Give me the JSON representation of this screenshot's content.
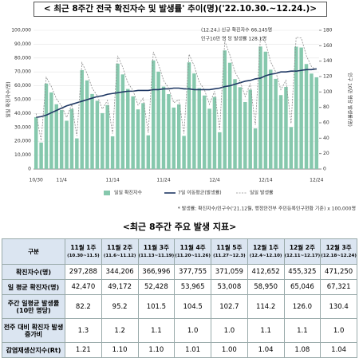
{
  "chart_data": {
    "type": "bar-line",
    "title": "< 최근 8주간 전국 확진자수 및 발생률' 추이(명)('22.10.30.~12.24.)>",
    "y_label": "일일 확진자수(명)",
    "y2_label": "인구 10만 명당 발생률(명)",
    "annotations": [
      "(12.24.) 신규 확진자수 66,145명",
      "인구10만 명 당 발생률 128.1명"
    ],
    "footnote": "* 발생률: 확진자수/인구수('21.12월, 행정안전부 주민등록인구현황 기준) x 100,000명",
    "categories": [
      "10/30",
      null,
      null,
      null,
      null,
      "11/4",
      null,
      null,
      null,
      null,
      null,
      null,
      null,
      null,
      null,
      "11/14",
      null,
      null,
      null,
      null,
      null,
      null,
      null,
      null,
      null,
      "11/24",
      null,
      null,
      null,
      null,
      null,
      null,
      null,
      null,
      null,
      "12/4",
      null,
      null,
      null,
      null,
      null,
      null,
      null,
      null,
      null,
      "12/14",
      null,
      null,
      null,
      null,
      null,
      null,
      null,
      null,
      null,
      "12/24"
    ],
    "ylim": [
      0,
      100000
    ],
    "yticks": [
      0,
      {
        "value": 10000,
        "label": "10,000"
      },
      {
        "value": 20000,
        "label": "20,000"
      },
      {
        "value": 30000,
        "label": "30,000"
      },
      {
        "value": 40000,
        "label": "40,000"
      },
      {
        "value": 50000,
        "label": "50,000"
      },
      {
        "value": 60000,
        "label": "60,000"
      },
      {
        "value": 70000,
        "label": "70,000"
      },
      {
        "value": 80000,
        "label": "80,000"
      },
      {
        "value": 90000,
        "label": "90,000"
      },
      {
        "value": 100000,
        "label": "100,000"
      }
    ],
    "y2lim": [
      0,
      180
    ],
    "y2ticks": [
      0,
      20,
      40,
      60,
      80,
      100,
      120,
      140,
      160,
      180
    ],
    "series": [
      {
        "name": "일일 확진자수",
        "color": "#86c8ad",
        "kind": "bar",
        "values": [
          37400,
          19100,
          61600,
          55200,
          46700,
          42500,
          34800,
          43300,
          22100,
          71300,
          63900,
          54100,
          49200,
          40300,
          46100,
          23600,
          76000,
          68200,
          57700,
          52400,
          43000,
          47500,
          24300,
          78300,
          70200,
          59400,
          54000,
          44300,
          46600,
          23900,
          76900,
          68900,
          58300,
          53000,
          43500,
          51900,
          26500,
          85500,
          76600,
          64800,
          59000,
          48300,
          57200,
          29300,
          88300,
          84600,
          71600,
          65000,
          53300,
          59200,
          30300,
          88200,
          87600,
          75700,
          68800,
          66145
        ]
      },
      {
        "name": "7일 이동평균(발생률)",
        "color": "#1f3864",
        "kind": "line",
        "axis": "y2",
        "values": [
          67,
          68,
          70,
          73,
          76,
          79,
          82,
          84,
          86,
          88,
          90,
          92,
          94,
          95,
          97,
          98,
          99,
          100,
          101,
          101,
          102,
          102,
          102,
          103,
          103,
          104,
          104,
          105,
          105,
          104,
          104,
          103,
          103,
          103,
          103,
          104,
          105,
          107,
          108,
          110,
          112,
          114,
          115,
          117,
          118,
          121,
          123,
          124,
          126,
          126,
          127,
          127,
          128,
          129,
          129,
          130
        ]
      },
      {
        "name": "일일 발생률",
        "color": "#8c8c8c",
        "kind": "dashed",
        "axis": "y2",
        "values": [
          72,
          37,
          119,
          107,
          91,
          82,
          67,
          84,
          43,
          138,
          124,
          105,
          95,
          78,
          89,
          46,
          147,
          132,
          112,
          102,
          83,
          92,
          47,
          152,
          136,
          115,
          105,
          86,
          90,
          46,
          149,
          134,
          113,
          103,
          84,
          101,
          51,
          166,
          148,
          126,
          114,
          94,
          111,
          57,
          171,
          164,
          139,
          126,
          103,
          115,
          59,
          171,
          170,
          147,
          133,
          128.1
        ]
      }
    ]
  },
  "table": {
    "title": "<최근 8주간 주요 발생 지표>",
    "corner": "구분",
    "columns": [
      [
        "11월 1주",
        "(10.30~11.5)"
      ],
      [
        "11월 2주",
        "(11.6~11.12)"
      ],
      [
        "11월 3주",
        "(11.13~11.19)"
      ],
      [
        "11월 4주",
        "(11.20~11.26)"
      ],
      [
        "11월 5주",
        "(11.27~12.3)"
      ],
      [
        "12월 1주",
        "(12.4~12.10)"
      ],
      [
        "12월 2주",
        "(12.11~12.17)"
      ],
      [
        "12월 3주",
        "(12.18~12.24)"
      ]
    ],
    "rows": [
      [
        "확진자수(명)",
        "297,288",
        "344,206",
        "366,996",
        "377,755",
        "371,059",
        "412,652",
        "455,325",
        "471,250"
      ],
      [
        "일 평균 확진자(명)",
        "42,470",
        "49,172",
        "52,428",
        "53,965",
        "53,008",
        "58,950",
        "65,046",
        "67,321"
      ],
      [
        "주간 일평균 발생률(10만 명당)",
        "82.2",
        "95.2",
        "101.5",
        "104.5",
        "102.7",
        "114.2",
        "126.0",
        "130.4"
      ],
      [
        "전주 대비 확진자 발생 증가비",
        "1.3",
        "1.2",
        "1.1",
        "1.0",
        "1.0",
        "1.1",
        "1.1",
        "1.0"
      ],
      [
        "감염재생산지수(Rt)",
        "1.21",
        "1.10",
        "1.10",
        "1.01",
        "1.00",
        "1.04",
        "1.08",
        "1.04"
      ]
    ]
  }
}
